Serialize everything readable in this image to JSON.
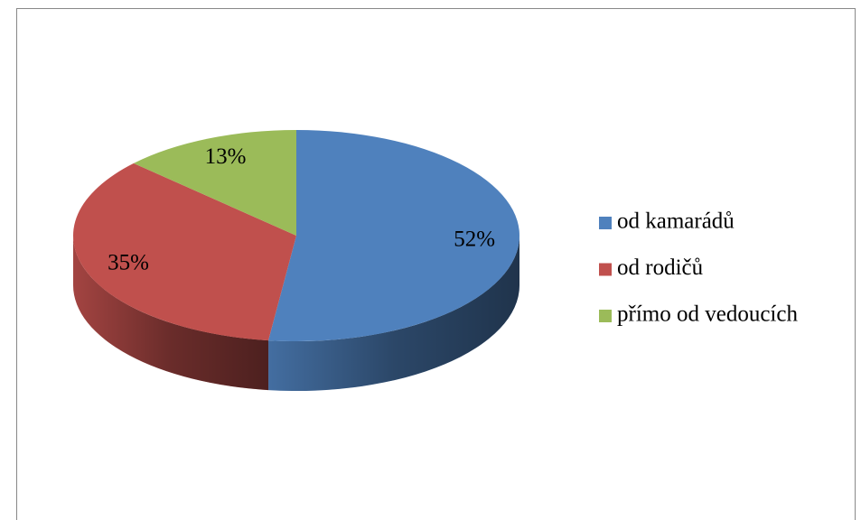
{
  "chart_data": {
    "type": "pie3d",
    "categories": [
      "od kamarádů",
      "od rodičů",
      "přímo od vedoucích"
    ],
    "values": [
      52,
      35,
      13
    ],
    "value_labels": [
      "52%",
      "35%",
      "13%"
    ],
    "colors": [
      "#4f81bd",
      "#c0504d",
      "#9bbb59"
    ],
    "legend": "right"
  }
}
